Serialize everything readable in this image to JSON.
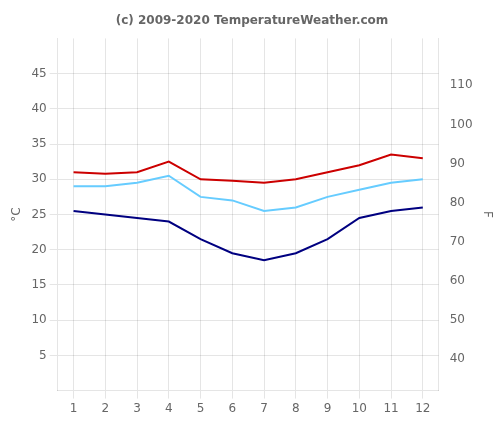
{
  "chart_data": {
    "type": "line",
    "title": "(c) 2009-2020 TemperatureWeather.com",
    "ylabel": "°C",
    "y2label": "F",
    "x": [
      1,
      2,
      3,
      4,
      5,
      6,
      7,
      8,
      9,
      10,
      11,
      12
    ],
    "series": [
      {
        "color": "#cc0000",
        "values": [
          31.0,
          30.8,
          31.0,
          32.5,
          30.0,
          29.8,
          29.5,
          30.0,
          31.0,
          32.0,
          33.5,
          33.0
        ]
      },
      {
        "color": "#66ccff",
        "values": [
          29.0,
          29.0,
          29.5,
          30.5,
          27.5,
          27.0,
          25.5,
          26.0,
          27.5,
          28.5,
          29.5,
          30.0
        ]
      },
      {
        "color": "#000080",
        "values": [
          25.5,
          25.0,
          24.5,
          24.0,
          21.5,
          19.5,
          18.5,
          19.5,
          21.5,
          24.5,
          25.5,
          26.0
        ]
      }
    ],
    "xlim": [
      0.5,
      12.5
    ],
    "xticks": [
      1,
      2,
      3,
      4,
      5,
      6,
      7,
      8,
      9,
      10,
      11,
      12
    ],
    "ylim": [
      0,
      50
    ],
    "yticks": [
      5,
      10,
      15,
      20,
      25,
      30,
      35,
      40,
      45
    ],
    "y2lim": [
      32,
      122
    ],
    "y2ticks": [
      40,
      50,
      60,
      70,
      80,
      90,
      100,
      110
    ],
    "grid": true
  }
}
